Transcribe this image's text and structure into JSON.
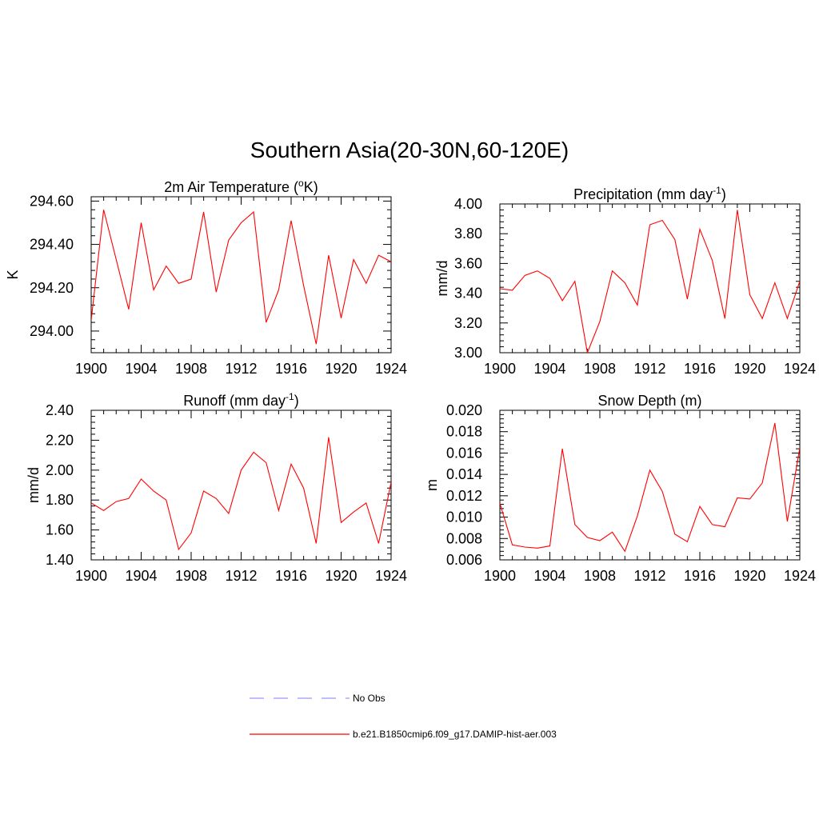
{
  "figure": {
    "title": "Southern Asia(20-30N,60-120E)"
  },
  "legend": {
    "placement": "bottom-center",
    "entries": [
      {
        "label": "No Obs",
        "color": "#9999ff",
        "style": "dashed"
      },
      {
        "label": "b.e21.B1850cmip6.f09_g17.DAMIP-hist-aer.003",
        "color": "#ff0000",
        "style": "solid"
      }
    ]
  },
  "chart_data": [
    {
      "type": "line",
      "title": "2m Air Temperature (",
      "title_sup": "o",
      "title_after": "K)",
      "ylabel": "K",
      "xlim": [
        1900,
        1924
      ],
      "ylim": [
        293.9,
        294.62
      ],
      "xticks": [
        1900,
        1904,
        1908,
        1912,
        1916,
        1920,
        1924
      ],
      "xtick_labels": [
        "1900",
        "1904",
        "1908",
        "1912",
        "1916",
        "1920",
        "1924"
      ],
      "yticks": [
        294.0,
        294.2,
        294.4,
        294.6
      ],
      "ytick_labels": [
        "294.00",
        "294.20",
        "294.40",
        "294.60"
      ],
      "grid": false,
      "series": [
        {
          "color": "#ff0000",
          "x": [
            1900,
            1901,
            1902,
            1903,
            1904,
            1905,
            1906,
            1907,
            1908,
            1909,
            1910,
            1911,
            1912,
            1913,
            1914,
            1915,
            1916,
            1917,
            1918,
            1919,
            1920,
            1921,
            1922,
            1923,
            1924
          ],
          "y": [
            294.05,
            294.56,
            294.33,
            294.1,
            294.5,
            294.19,
            294.3,
            294.22,
            294.24,
            294.55,
            294.18,
            294.42,
            294.5,
            294.55,
            294.04,
            294.19,
            294.51,
            294.21,
            293.94,
            294.35,
            294.06,
            294.33,
            294.22,
            294.35,
            294.32
          ]
        }
      ]
    },
    {
      "type": "line",
      "title": "Precipitation (mm day",
      "title_sup": "-1",
      "title_after": ")",
      "ylabel": "mm/d",
      "xlim": [
        1900,
        1924
      ],
      "ylim": [
        3.0,
        4.0
      ],
      "xticks": [
        1900,
        1904,
        1908,
        1912,
        1916,
        1920,
        1924
      ],
      "xtick_labels": [
        "1900",
        "1904",
        "1908",
        "1912",
        "1916",
        "1920",
        "1924"
      ],
      "yticks": [
        3.0,
        3.2,
        3.4,
        3.6,
        3.8,
        4.0
      ],
      "ytick_labels": [
        "3.00",
        "3.20",
        "3.40",
        "3.60",
        "3.80",
        "4.00"
      ],
      "grid": false,
      "series": [
        {
          "color": "#ff0000",
          "x": [
            1900,
            1901,
            1902,
            1903,
            1904,
            1905,
            1906,
            1907,
            1908,
            1909,
            1910,
            1911,
            1912,
            1913,
            1914,
            1915,
            1916,
            1917,
            1918,
            1919,
            1920,
            1921,
            1922,
            1923,
            1924
          ],
          "y": [
            3.43,
            3.42,
            3.52,
            3.55,
            3.5,
            3.35,
            3.48,
            3.0,
            3.21,
            3.55,
            3.47,
            3.32,
            3.86,
            3.89,
            3.76,
            3.36,
            3.83,
            3.62,
            3.23,
            3.96,
            3.39,
            3.23,
            3.47,
            3.23,
            3.48
          ]
        }
      ]
    },
    {
      "type": "line",
      "title": "Runoff (mm day",
      "title_sup": "-1",
      "title_after": ")",
      "ylabel": "mm/d",
      "xlim": [
        1900,
        1924
      ],
      "ylim": [
        1.4,
        2.4
      ],
      "xticks": [
        1900,
        1904,
        1908,
        1912,
        1916,
        1920,
        1924
      ],
      "xtick_labels": [
        "1900",
        "1904",
        "1908",
        "1912",
        "1916",
        "1920",
        "1924"
      ],
      "yticks": [
        1.4,
        1.6,
        1.8,
        2.0,
        2.2,
        2.4
      ],
      "ytick_labels": [
        "1.40",
        "1.60",
        "1.80",
        "2.00",
        "2.20",
        "2.40"
      ],
      "grid": false,
      "series": [
        {
          "color": "#ff0000",
          "x": [
            1900,
            1901,
            1902,
            1903,
            1904,
            1905,
            1906,
            1907,
            1908,
            1909,
            1910,
            1911,
            1912,
            1913,
            1914,
            1915,
            1916,
            1917,
            1918,
            1919,
            1920,
            1921,
            1922,
            1923,
            1924
          ],
          "y": [
            1.78,
            1.73,
            1.79,
            1.81,
            1.94,
            1.86,
            1.8,
            1.47,
            1.58,
            1.86,
            1.81,
            1.71,
            2.0,
            2.12,
            2.05,
            1.73,
            2.04,
            1.88,
            1.51,
            2.22,
            1.65,
            1.72,
            1.78,
            1.51,
            1.92
          ]
        }
      ]
    },
    {
      "type": "line",
      "title": "Snow Depth (m)",
      "title_sup": "",
      "title_after": "",
      "ylabel": "m",
      "xlim": [
        1900,
        1924
      ],
      "ylim": [
        0.006,
        0.02
      ],
      "xticks": [
        1900,
        1904,
        1908,
        1912,
        1916,
        1920,
        1924
      ],
      "xtick_labels": [
        "1900",
        "1904",
        "1908",
        "1912",
        "1916",
        "1920",
        "1924"
      ],
      "yticks": [
        0.006,
        0.008,
        0.01,
        0.012,
        0.014,
        0.016,
        0.018,
        0.02
      ],
      "ytick_labels": [
        "0.006",
        "0.008",
        "0.010",
        "0.012",
        "0.014",
        "0.016",
        "0.018",
        "0.020"
      ],
      "grid": false,
      "series": [
        {
          "color": "#ff0000",
          "x": [
            1900,
            1901,
            1902,
            1903,
            1904,
            1905,
            1906,
            1907,
            1908,
            1909,
            1910,
            1911,
            1912,
            1913,
            1914,
            1915,
            1916,
            1917,
            1918,
            1919,
            1920,
            1921,
            1922,
            1923,
            1924
          ],
          "y": [
            0.0113,
            0.0074,
            0.0072,
            0.0071,
            0.0073,
            0.0164,
            0.0093,
            0.0081,
            0.0078,
            0.0086,
            0.0068,
            0.0101,
            0.0144,
            0.0124,
            0.0084,
            0.0077,
            0.011,
            0.0093,
            0.0091,
            0.0118,
            0.0117,
            0.0132,
            0.0188,
            0.0096,
            0.0165
          ]
        }
      ]
    }
  ]
}
